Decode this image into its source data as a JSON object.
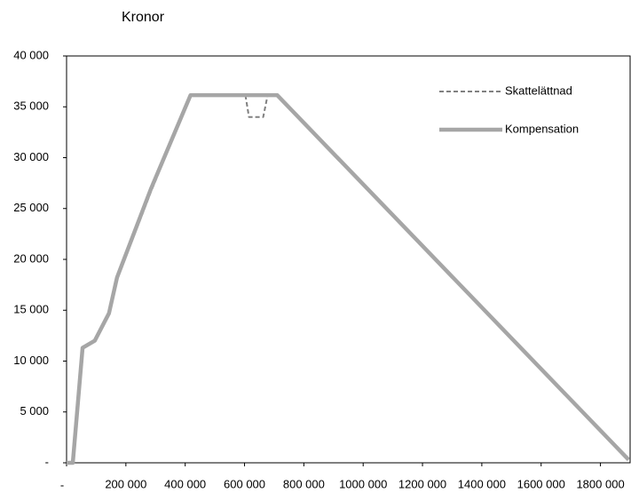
{
  "chart_data": {
    "type": "line",
    "ylabel": "Kronor",
    "xlim": [
      0,
      1900000
    ],
    "ylim": [
      0,
      40000
    ],
    "xticks": [
      {
        "value": 0,
        "label": "-"
      },
      {
        "value": 200000,
        "label": "200 000"
      },
      {
        "value": 400000,
        "label": "400 000"
      },
      {
        "value": 600000,
        "label": "600 000"
      },
      {
        "value": 800000,
        "label": "800 000"
      },
      {
        "value": 1000000,
        "label": "1000 000"
      },
      {
        "value": 1200000,
        "label": "1200 000"
      },
      {
        "value": 1400000,
        "label": "1400 000"
      },
      {
        "value": 1600000,
        "label": "1600 000"
      },
      {
        "value": 1800000,
        "label": "1800 000"
      }
    ],
    "yticks": [
      {
        "value": 0,
        "label": "-"
      },
      {
        "value": 5000,
        "label": "5 000"
      },
      {
        "value": 10000,
        "label": "10 000"
      },
      {
        "value": 15000,
        "label": "15 000"
      },
      {
        "value": 20000,
        "label": "20 000"
      },
      {
        "value": 25000,
        "label": "25 000"
      },
      {
        "value": 30000,
        "label": "30 000"
      },
      {
        "value": 35000,
        "label": "35 000"
      },
      {
        "value": 40000,
        "label": "40 000"
      }
    ],
    "legend": "upper right",
    "series": [
      {
        "name": "Skattelättnad",
        "color": "#808080",
        "dashed": true,
        "x": [
          0,
          21000,
          54000,
          95000,
          143000,
          170000,
          284000,
          418000,
          603000,
          615000,
          663000,
          678000,
          710000,
          1895000
        ],
        "values": [
          0,
          0,
          11300,
          12000,
          14700,
          18000,
          26600,
          36150,
          36150,
          34000,
          34000,
          36150,
          36150,
          300
        ]
      },
      {
        "name": "Kompensation",
        "color": "#a6a6a6",
        "dashed": false,
        "x": [
          0,
          21000,
          54000,
          95000,
          143000,
          170000,
          284000,
          418000,
          710000,
          1895000
        ],
        "values": [
          0,
          0,
          11300,
          12000,
          14700,
          18200,
          26900,
          36150,
          36150,
          300
        ]
      }
    ]
  }
}
